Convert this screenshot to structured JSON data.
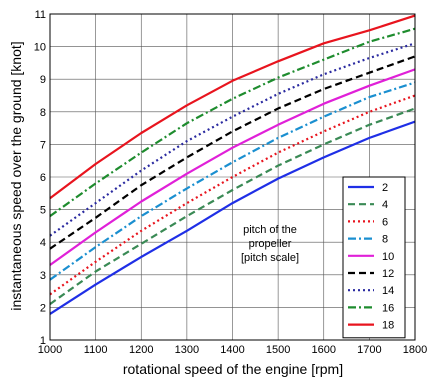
{
  "chart_data": {
    "type": "line",
    "xlabel": "rotational speed of the engine  [rpm]",
    "ylabel": "instantaneous speed over the ground  [knot]",
    "xlim": [
      1000,
      1800
    ],
    "ylim": [
      1,
      11
    ],
    "xticks": [
      "1000",
      "1100",
      "1200",
      "1300",
      "1400",
      "1500",
      "1600",
      "1700",
      "1800"
    ],
    "yticks": [
      "1",
      "2",
      "3",
      "4",
      "5",
      "6",
      "7",
      "8",
      "9",
      "10",
      "11"
    ],
    "grid": true,
    "annotation": [
      "pitch of the",
      "propeller",
      "[pitch scale]"
    ],
    "legend_position": "lower-right",
    "x": [
      1000,
      1100,
      1200,
      1300,
      1400,
      1500,
      1600,
      1700,
      1800
    ],
    "series": [
      {
        "name": "2",
        "color": "#1f2fe6",
        "dash": "solid",
        "values": [
          1.8,
          2.7,
          3.55,
          4.35,
          5.2,
          5.95,
          6.6,
          7.2,
          7.7
        ]
      },
      {
        "name": "4",
        "color": "#3a8a55",
        "dash": "dash",
        "values": [
          2.1,
          3.1,
          3.95,
          4.8,
          5.6,
          6.35,
          7.0,
          7.6,
          8.1
        ]
      },
      {
        "name": "6",
        "color": "#e8141e",
        "dash": "dot",
        "values": [
          2.4,
          3.4,
          4.35,
          5.2,
          6.0,
          6.75,
          7.4,
          8.0,
          8.5
        ]
      },
      {
        "name": "8",
        "color": "#1a8fd0",
        "dash": "dashdot",
        "values": [
          2.85,
          3.85,
          4.8,
          5.65,
          6.45,
          7.2,
          7.85,
          8.45,
          8.9
        ]
      },
      {
        "name": "10",
        "color": "#e020d8",
        "dash": "solid",
        "values": [
          3.3,
          4.3,
          5.25,
          6.1,
          6.9,
          7.6,
          8.25,
          8.8,
          9.3
        ]
      },
      {
        "name": "12",
        "color": "#000000",
        "dash": "dash",
        "values": [
          3.8,
          4.75,
          5.75,
          6.6,
          7.4,
          8.1,
          8.7,
          9.2,
          9.7
        ]
      },
      {
        "name": "14",
        "color": "#2a2aa0",
        "dash": "dot",
        "values": [
          4.2,
          5.2,
          6.2,
          7.1,
          7.85,
          8.55,
          9.15,
          9.65,
          10.1
        ]
      },
      {
        "name": "16",
        "color": "#1e8c2e",
        "dash": "dashdot",
        "values": [
          4.8,
          5.8,
          6.75,
          7.65,
          8.4,
          9.05,
          9.6,
          10.15,
          10.55
        ]
      },
      {
        "name": "18",
        "color": "#e8141e",
        "dash": "solid",
        "values": [
          5.35,
          6.4,
          7.35,
          8.2,
          8.95,
          9.55,
          10.1,
          10.5,
          10.95
        ]
      }
    ]
  }
}
